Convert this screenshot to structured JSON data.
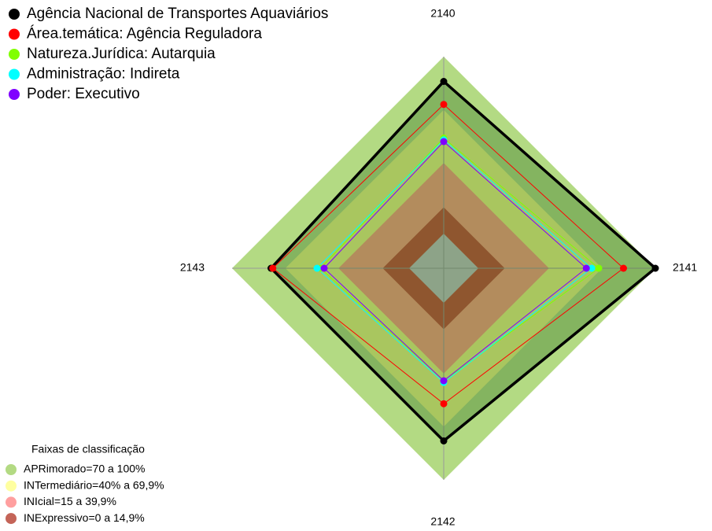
{
  "chart_data": {
    "type": "radar",
    "categories": [
      "2140",
      "2141",
      "2142",
      "2143"
    ],
    "rlim": [
      0,
      100
    ],
    "series": [
      {
        "name": "Agência Nacional de Transportes Aquaviários",
        "color": "#000000",
        "values": [
          86,
          100,
          78,
          78
        ]
      },
      {
        "name": "Área.temática: Agência Reguladora",
        "color": "#ff0000",
        "values": [
          73,
          82,
          57,
          77
        ]
      },
      {
        "name": "Natureza.Jurídica: Autarquia",
        "color": "#80ff00",
        "values": [
          54,
          68,
          44,
          50
        ]
      },
      {
        "name": "Administração: Indireta",
        "color": "#00ffff",
        "values": [
          53,
          64,
          45,
          52
        ]
      },
      {
        "name": "Poder: Executivo",
        "color": "#8000ff",
        "values": [
          52,
          61,
          44,
          48
        ]
      }
    ],
    "bands_title": "Faixas de classificação",
    "bands": [
      {
        "label": "APRimorado=70 a 100%",
        "range": [
          70,
          100
        ],
        "color": "#9acd59"
      },
      {
        "label": "INTermediário=40% a 69,9%",
        "range": [
          40,
          69.9
        ],
        "color": "#ffff80"
      },
      {
        "label": "INIcial=15 a 39,9%",
        "range": [
          15,
          39.9
        ],
        "color": "#ff7f7f"
      },
      {
        "label": "INExpressivo=0 a 14,9%",
        "range": [
          0,
          14.9
        ],
        "color": "#b03020"
      }
    ]
  }
}
